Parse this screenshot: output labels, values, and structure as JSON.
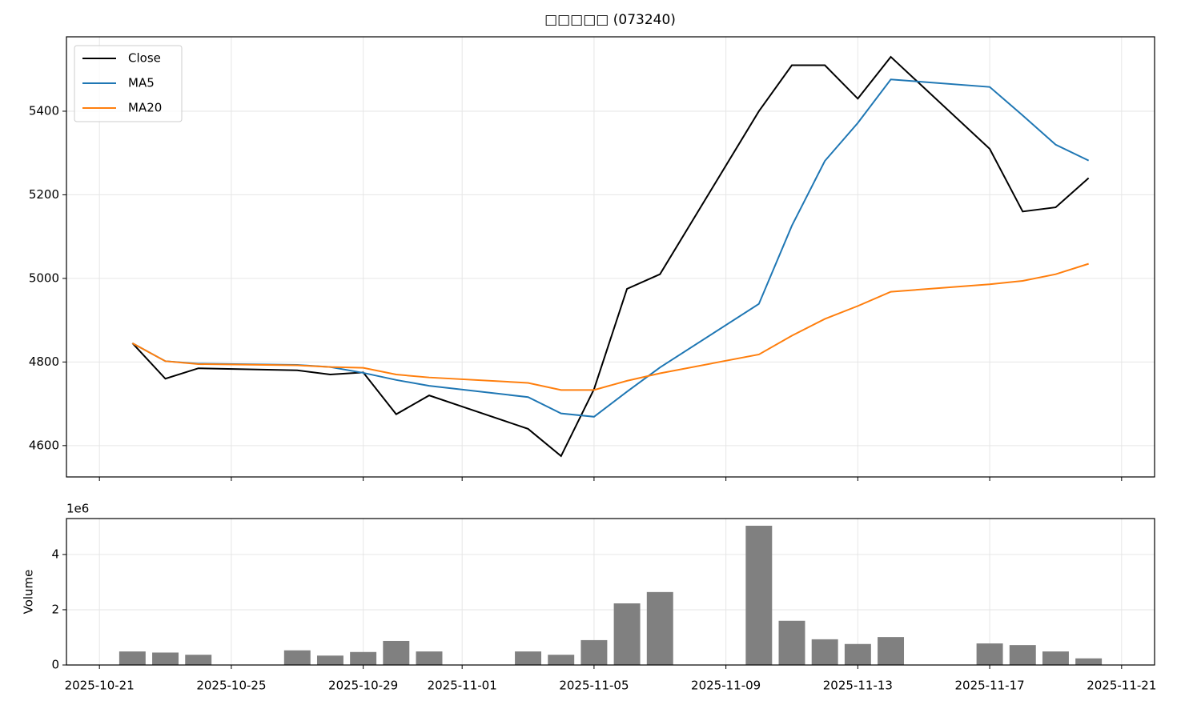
{
  "chart_data": [
    {
      "type": "line",
      "title": "□□□□□ (073240)",
      "x": [
        "2025-10-22",
        "2025-10-23",
        "2025-10-24",
        "2025-10-27",
        "2025-10-28",
        "2025-10-29",
        "2025-10-30",
        "2025-10-31",
        "2025-11-03",
        "2025-11-04",
        "2025-11-05",
        "2025-11-06",
        "2025-11-07",
        "2025-11-10",
        "2025-11-11",
        "2025-11-12",
        "2025-11-13",
        "2025-11-14",
        "2025-11-17",
        "2025-11-18",
        "2025-11-19",
        "2025-11-20"
      ],
      "series": [
        {
          "name": "Close",
          "color": "#000000",
          "values": [
            4845,
            4760,
            4785,
            4780,
            4770,
            4775,
            4675,
            4720,
            4640,
            4575,
            4735,
            4975,
            5010,
            5400,
            5510,
            5510,
            5430,
            5530,
            5310,
            5160,
            5170,
            5240
          ]
        },
        {
          "name": "MA5",
          "color": "#1f77b4",
          "values": [
            4845,
            4802,
            4796,
            4793,
            4788,
            4774,
            4757,
            4743,
            4716,
            4677,
            4669,
            4729,
            4787,
            4939,
            5126,
            5281,
            5372,
            5476,
            5458,
            5390,
            5320,
            5282
          ]
        },
        {
          "name": "MA20",
          "color": "#ff7f0e",
          "values": [
            4845,
            4802,
            4795,
            4792,
            4788,
            4786,
            4770,
            4763,
            4750,
            4733,
            4733,
            4755,
            4773,
            4818,
            4863,
            4903,
            4934,
            4968,
            4986,
            4994,
            5010,
            5035
          ]
        }
      ],
      "xlim": [
        "2025-10-20",
        "2025-11-22"
      ],
      "xticks": [
        "2025-10-21",
        "2025-10-25",
        "2025-10-29",
        "2025-11-01",
        "2025-11-05",
        "2025-11-09",
        "2025-11-13",
        "2025-11-17",
        "2025-11-21"
      ],
      "ylim": [
        4525,
        5578
      ],
      "yticks": [
        4600,
        4800,
        5000,
        5200,
        5400
      ],
      "grid": true,
      "legend": "upper left"
    },
    {
      "type": "bar",
      "ylabel": "Volume",
      "offset_label": "1e6",
      "color": "#808080",
      "x": [
        "2025-10-22",
        "2025-10-23",
        "2025-10-24",
        "2025-10-27",
        "2025-10-28",
        "2025-10-29",
        "2025-10-30",
        "2025-10-31",
        "2025-11-03",
        "2025-11-04",
        "2025-11-05",
        "2025-11-06",
        "2025-11-07",
        "2025-11-10",
        "2025-11-11",
        "2025-11-12",
        "2025-11-13",
        "2025-11-14",
        "2025-11-17",
        "2025-11-18",
        "2025-11-19",
        "2025-11-20"
      ],
      "values": [
        0.49,
        0.45,
        0.37,
        0.53,
        0.34,
        0.47,
        0.87,
        0.49,
        0.49,
        0.37,
        0.9,
        2.23,
        2.64,
        5.04,
        1.6,
        0.93,
        0.76,
        1.01,
        0.78,
        0.72,
        0.49,
        0.24
      ],
      "xlim": [
        "2025-10-20",
        "2025-11-22"
      ],
      "xticks": [
        "2025-10-21",
        "2025-10-25",
        "2025-10-29",
        "2025-11-01",
        "2025-11-05",
        "2025-11-09",
        "2025-11-13",
        "2025-11-17",
        "2025-11-21"
      ],
      "ylim": [
        0,
        5.3
      ],
      "yticks": [
        0,
        2,
        4
      ],
      "grid": true
    }
  ]
}
